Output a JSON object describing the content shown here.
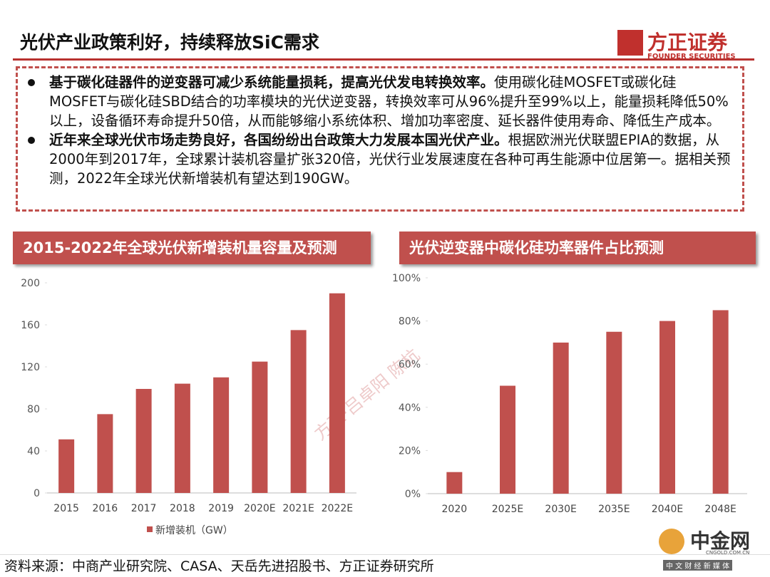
{
  "header": {
    "title": "光伏产业政策利好，持续释放SiC需求",
    "logo": "方正证券",
    "logo_sub": "FOUNDER SECURITIES"
  },
  "bullets": [
    {
      "bold": "基于碳化硅器件的逆变器可减少系统能量损耗，提高光伏发电转换效率。",
      "text": "使用碳化硅MOSFET或碳化硅MOSFET与碳化硅SBD结合的功率模块的光伏逆变器，转换效率可从96%提升至99%以上，能量损耗降低50%以上，设备循环寿命提升50倍，从而能够缩小系统体积、增加功率密度、延长器件使用寿命、降低生产成本。"
    },
    {
      "bold": "近年来全球光伏市场走势良好，各国纷纷出台政策大力发展本国光伏产业。",
      "text": "根据欧洲光伏联盟EPIA的数据，从2000年到2017年，全球累计装机容量扩张320倍，光伏行业发展速度在各种可再生能源中位居第一。据相关预测，2022年全球光伏新增装机有望达到190GW。"
    }
  ],
  "chart_data": [
    {
      "type": "bar",
      "title": "2015-2022年全球光伏新增装机量容量及预测",
      "categories": [
        "2015",
        "2016",
        "2017",
        "2018",
        "2019",
        "2020E",
        "2021E",
        "2022E"
      ],
      "series": [
        {
          "name": "新增装机（GW）",
          "color": "#c0504d",
          "values": [
            51,
            75,
            99,
            104,
            110,
            125,
            155,
            190
          ]
        }
      ],
      "ylim": [
        0,
        200
      ],
      "yticks": [
        0,
        40,
        80,
        120,
        160,
        200
      ],
      "legend": "bottom"
    },
    {
      "type": "bar",
      "title": "光伏逆变器中碳化硅功率器件占比预测",
      "categories": [
        "2020",
        "2025E",
        "2030E",
        "2035E",
        "2040E",
        "2048E"
      ],
      "series": [
        {
          "color": "#c0504d",
          "values": [
            10,
            50,
            70,
            75,
            80,
            85
          ]
        }
      ],
      "ylim": [
        0,
        100
      ],
      "yticks": [
        {
          "value": 0,
          "label": "0%"
        },
        {
          "value": 20,
          "label": "20%"
        },
        {
          "value": 40,
          "label": "40%"
        },
        {
          "value": 60,
          "label": "60%"
        },
        {
          "value": 80,
          "label": "80%"
        },
        {
          "value": 100,
          "label": "100%"
        }
      ]
    }
  ],
  "watermark": "方正·吕卓阳 陈杭",
  "footer": {
    "source": "资料来源：中商产业研究院、CASA、天岳先进招股书、方正证券研究所",
    "brand": "中金网",
    "brand_url": "CNGOLD.COM.CN",
    "brand_sub": "中 文 财 经 新 媒 体"
  }
}
